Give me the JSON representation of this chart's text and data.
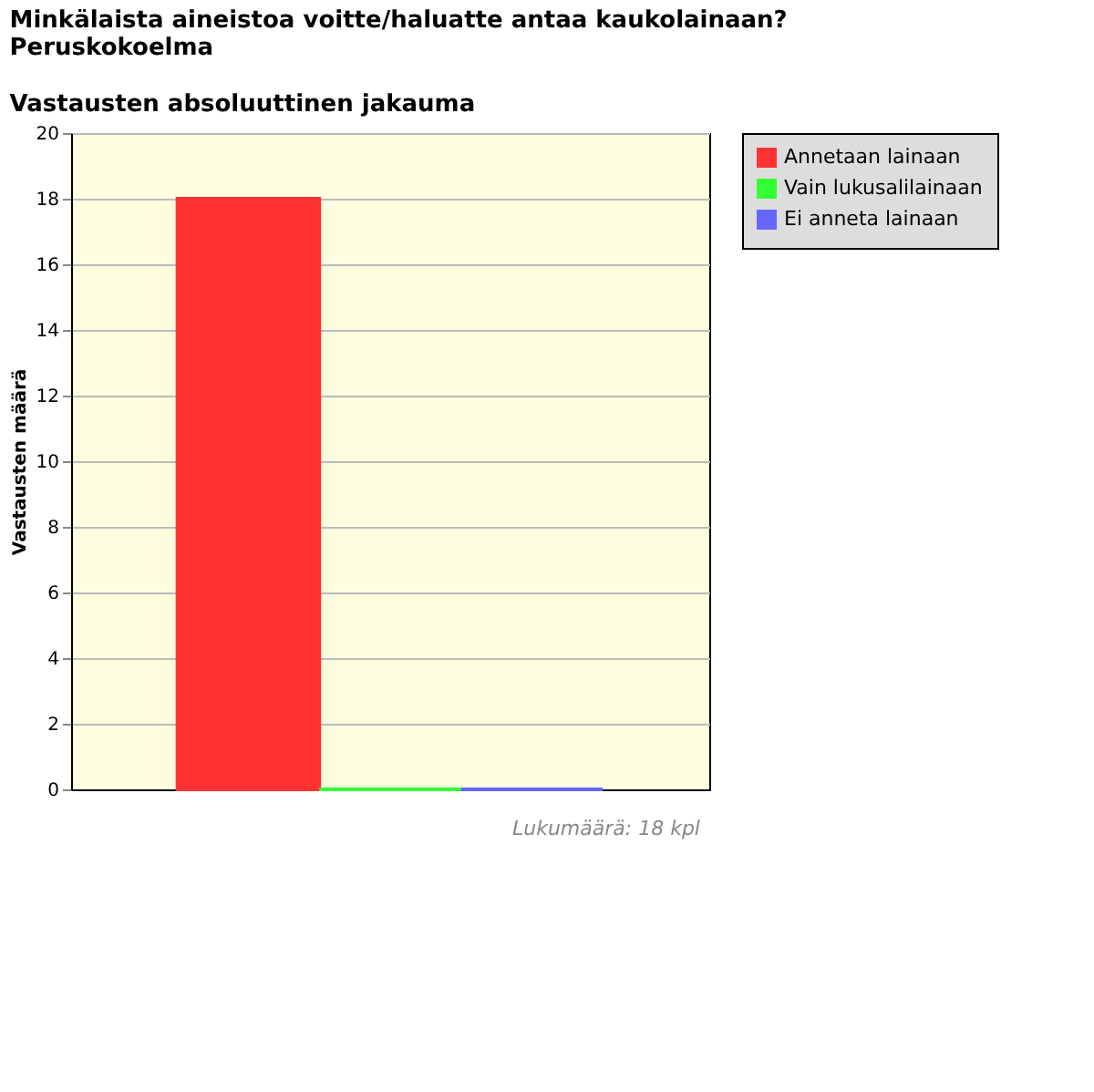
{
  "chart_data": {
    "type": "bar",
    "title": "Minkälaista aineistoa voitte/haluatte antaa kaukolainaan?\nPeruskokoelma",
    "subtitle": "Vastausten absoluuttinen jakauma",
    "ylabel": "Vastausten määrä",
    "categories": [
      null
    ],
    "series": [
      {
        "name": "Annetaan lainaan",
        "color": "#ff3333",
        "values": [
          18
        ]
      },
      {
        "name": "Vain lukusalilainaan",
        "color": "#33ff33",
        "values": [
          0
        ]
      },
      {
        "name": "Ei anneta lainaan",
        "color": "#6666ff",
        "values": [
          0
        ]
      }
    ],
    "ylim": [
      0,
      20
    ],
    "yticks": [
      0,
      2,
      4,
      6,
      8,
      10,
      12,
      14,
      16,
      18,
      20
    ],
    "grid": "y",
    "legend": "right",
    "tick_labels": "y",
    "annotations": [
      "Lukumäärä: 18 kpl"
    ]
  }
}
